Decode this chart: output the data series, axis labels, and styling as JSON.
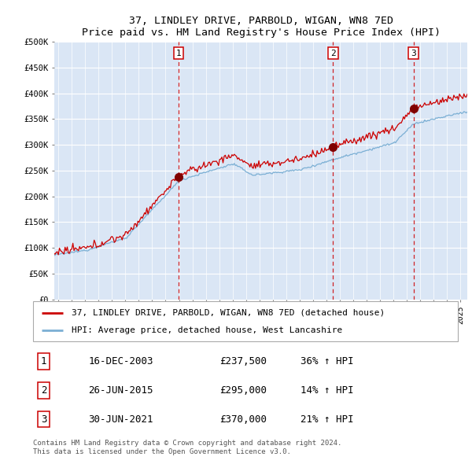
{
  "title": "37, LINDLEY DRIVE, PARBOLD, WIGAN, WN8 7ED",
  "subtitle": "Price paid vs. HM Land Registry's House Price Index (HPI)",
  "ylim": [
    0,
    500000
  ],
  "yticks": [
    0,
    50000,
    100000,
    150000,
    200000,
    250000,
    300000,
    350000,
    400000,
    450000,
    500000
  ],
  "ytick_labels": [
    "£0",
    "£50K",
    "£100K",
    "£150K",
    "£200K",
    "£250K",
    "£300K",
    "£350K",
    "£400K",
    "£450K",
    "£500K"
  ],
  "background_color": "#dae6f5",
  "red_line_color": "#cc0000",
  "blue_line_color": "#7bafd4",
  "sale_line_color": "#cc0000",
  "legend_label_red": "37, LINDLEY DRIVE, PARBOLD, WIGAN, WN8 7ED (detached house)",
  "legend_label_blue": "HPI: Average price, detached house, West Lancashire",
  "sales": [
    {
      "label": "1",
      "date": "16-DEC-2003",
      "price": 237500,
      "pct": "36%",
      "dir": "↑",
      "x_year": 2003.96
    },
    {
      "label": "2",
      "date": "26-JUN-2015",
      "price": 295000,
      "pct": "14%",
      "dir": "↑",
      "x_year": 2015.49
    },
    {
      "label": "3",
      "date": "30-JUN-2021",
      "price": 370000,
      "pct": "21%",
      "dir": "↑",
      "x_year": 2021.49
    }
  ],
  "footnote1": "Contains HM Land Registry data © Crown copyright and database right 2024.",
  "footnote2": "This data is licensed under the Open Government Licence v3.0.",
  "xlim_start": 1994.7,
  "xlim_end": 2025.5
}
